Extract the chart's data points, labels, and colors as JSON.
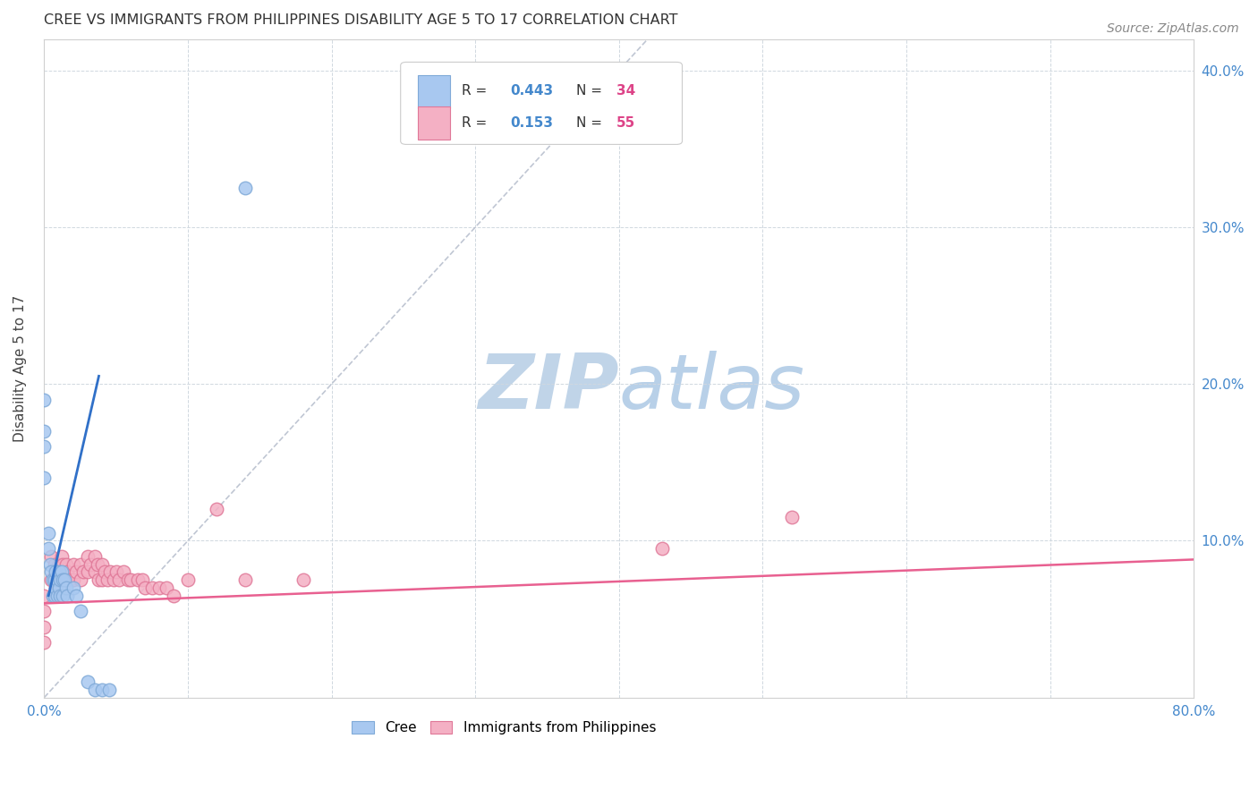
{
  "title": "CREE VS IMMIGRANTS FROM PHILIPPINES DISABILITY AGE 5 TO 17 CORRELATION CHART",
  "source": "Source: ZipAtlas.com",
  "ylabel": "Disability Age 5 to 17",
  "xlim": [
    0,
    0.8
  ],
  "ylim": [
    0,
    0.42
  ],
  "background_color": "#ffffff",
  "watermark_zip": "ZIP",
  "watermark_atlas": "atlas",
  "watermark_zip_color": "#c8ddf0",
  "watermark_atlas_color": "#b8d4ec",
  "cree_color": "#a8c8f0",
  "cree_edge_color": "#80aad8",
  "philippines_color": "#f4b0c4",
  "philippines_edge_color": "#e07898",
  "cree_line_color": "#3070c8",
  "philippines_line_color": "#e86090",
  "diagonal_color": "#b0b8c8",
  "legend_R_color": "#4488cc",
  "legend_N_color": "#dd4488",
  "tick_color": "#4488cc",
  "grid_color": "#d0d8e0",
  "cree_x": [
    0.0,
    0.0,
    0.0,
    0.0,
    0.003,
    0.003,
    0.004,
    0.005,
    0.006,
    0.006,
    0.007,
    0.007,
    0.008,
    0.008,
    0.009,
    0.009,
    0.01,
    0.01,
    0.011,
    0.011,
    0.012,
    0.013,
    0.013,
    0.014,
    0.015,
    0.016,
    0.02,
    0.022,
    0.025,
    0.03,
    0.035,
    0.04,
    0.045,
    0.14
  ],
  "cree_y": [
    0.19,
    0.17,
    0.16,
    0.14,
    0.105,
    0.095,
    0.085,
    0.08,
    0.075,
    0.065,
    0.075,
    0.065,
    0.08,
    0.07,
    0.075,
    0.065,
    0.08,
    0.07,
    0.075,
    0.065,
    0.08,
    0.075,
    0.065,
    0.075,
    0.07,
    0.065,
    0.07,
    0.065,
    0.055,
    0.01,
    0.005,
    0.005,
    0.005,
    0.325
  ],
  "phil_x": [
    0.0,
    0.0,
    0.0,
    0.0,
    0.005,
    0.005,
    0.007,
    0.008,
    0.008,
    0.009,
    0.01,
    0.012,
    0.012,
    0.013,
    0.015,
    0.015,
    0.016,
    0.018,
    0.02,
    0.02,
    0.022,
    0.025,
    0.025,
    0.027,
    0.03,
    0.03,
    0.032,
    0.035,
    0.035,
    0.037,
    0.038,
    0.04,
    0.04,
    0.042,
    0.044,
    0.046,
    0.048,
    0.05,
    0.052,
    0.055,
    0.058,
    0.06,
    0.065,
    0.068,
    0.07,
    0.075,
    0.08,
    0.085,
    0.09,
    0.1,
    0.12,
    0.14,
    0.18,
    0.43,
    0.52
  ],
  "phil_y": [
    0.065,
    0.055,
    0.045,
    0.035,
    0.09,
    0.075,
    0.085,
    0.08,
    0.07,
    0.075,
    0.085,
    0.09,
    0.08,
    0.085,
    0.085,
    0.075,
    0.08,
    0.075,
    0.085,
    0.075,
    0.08,
    0.085,
    0.075,
    0.08,
    0.09,
    0.08,
    0.085,
    0.09,
    0.08,
    0.085,
    0.075,
    0.085,
    0.075,
    0.08,
    0.075,
    0.08,
    0.075,
    0.08,
    0.075,
    0.08,
    0.075,
    0.075,
    0.075,
    0.075,
    0.07,
    0.07,
    0.07,
    0.07,
    0.065,
    0.075,
    0.12,
    0.075,
    0.075,
    0.095,
    0.115
  ],
  "title_fontsize": 11.5,
  "label_fontsize": 11,
  "tick_fontsize": 11,
  "source_fontsize": 10
}
